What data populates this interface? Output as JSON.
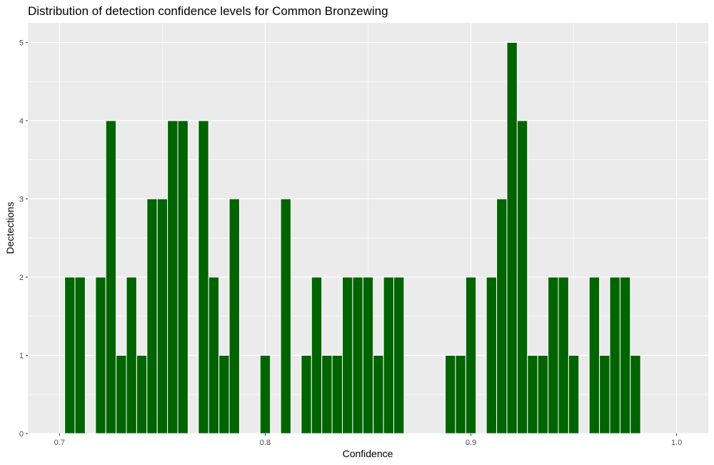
{
  "chart_data": {
    "type": "bar",
    "title": "Distribution of detection confidence levels for Common Bronzewing",
    "xlabel": "Confidence",
    "ylabel": "Dectections",
    "xlim": [
      0.6846,
      1.0154
    ],
    "ylim": [
      0,
      5.25
    ],
    "x_ticks": [
      0.7,
      0.8,
      0.9,
      1.0
    ],
    "x_tick_labels": [
      "0.7",
      "0.8",
      "0.9",
      "1.0"
    ],
    "y_ticks": [
      0,
      1,
      2,
      3,
      4,
      5
    ],
    "y_tick_labels": [
      "0",
      "1",
      "2",
      "3",
      "4",
      "5"
    ],
    "bin_width": 0.005,
    "grid": true,
    "panel_background": "#ebebeb",
    "grid_color": "#ffffff",
    "bar_color": "#006400",
    "bar_outline": "#ffffff",
    "x": [
      0.705,
      0.71,
      0.72,
      0.725,
      0.73,
      0.735,
      0.74,
      0.745,
      0.75,
      0.755,
      0.76,
      0.77,
      0.775,
      0.78,
      0.785,
      0.8,
      0.81,
      0.82,
      0.825,
      0.83,
      0.835,
      0.84,
      0.845,
      0.85,
      0.855,
      0.86,
      0.865,
      0.89,
      0.895,
      0.9,
      0.91,
      0.915,
      0.92,
      0.925,
      0.93,
      0.935,
      0.94,
      0.945,
      0.95,
      0.96,
      0.965,
      0.97,
      0.975,
      0.98
    ],
    "values": [
      2,
      2,
      2,
      4,
      1,
      2,
      1,
      3,
      3,
      4,
      4,
      4,
      2,
      1,
      3,
      1,
      3,
      1,
      2,
      1,
      1,
      2,
      2,
      2,
      1,
      2,
      2,
      1,
      1,
      2,
      2,
      3,
      5,
      4,
      1,
      1,
      2,
      2,
      1,
      2,
      1,
      2,
      2,
      1
    ]
  }
}
